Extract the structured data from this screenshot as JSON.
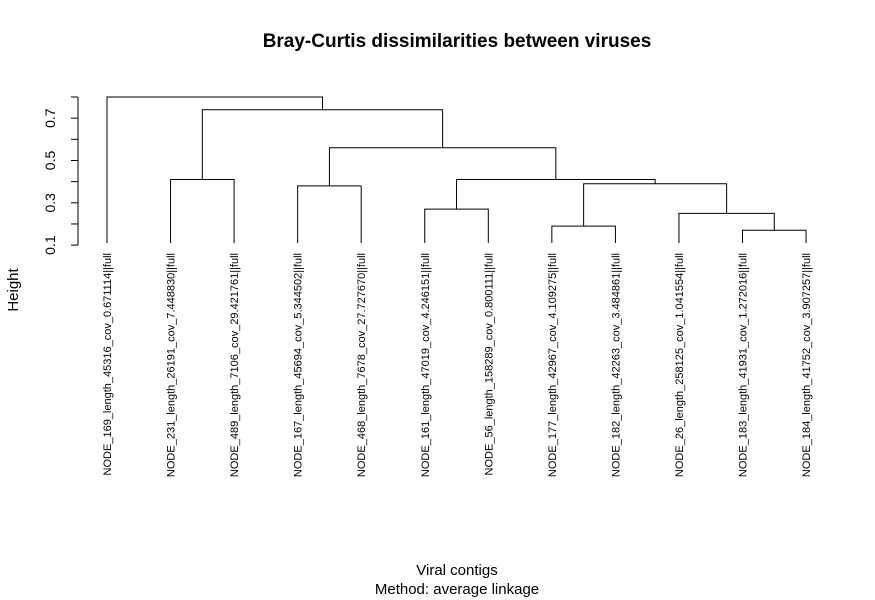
{
  "chart_data": {
    "type": "dendrogram",
    "title": "Bray-Curtis dissimilarities between viruses",
    "ylabel": "Height",
    "xlabel": "Viral contigs",
    "subtitle": "Method: average linkage",
    "yticks": [
      0.1,
      0.3,
      0.5,
      0.7
    ],
    "ytick_labels": [
      "0.1",
      "0.3",
      "0.5",
      "0.7"
    ],
    "ylim": [
      0.1,
      0.8
    ],
    "leaf_height": 0.11,
    "leaves": [
      "NODE_169_length_45316_cov_0.671114||full",
      "NODE_231_length_26191_cov_7.448830||full",
      "NODE_489_length_7106_cov_29.421761||full",
      "NODE_167_length_45694_cov_5.344502||full",
      "NODE_468_length_7678_cov_27.727670||full",
      "NODE_161_length_47019_cov_4.246151||full",
      "NODE_56_length_158289_cov_0.800111||full",
      "NODE_177_length_42967_cov_4.109275||full",
      "NODE_182_length_42263_cov_3.484861||full",
      "NODE_26_length_258125_cov_1.041554||full",
      "NODE_183_length_41931_cov_1.272016||full",
      "NODE_184_length_41752_cov_3.907257||full"
    ],
    "merges": [
      {
        "left": "L10",
        "right": "L11",
        "height": 0.17
      },
      {
        "left": "L9",
        "right": "C0",
        "height": 0.25
      },
      {
        "left": "L7",
        "right": "L8",
        "height": 0.19
      },
      {
        "left": "C2",
        "right": "C1",
        "height": 0.39
      },
      {
        "left": "L5",
        "right": "L6",
        "height": 0.27
      },
      {
        "left": "C4",
        "right": "C3",
        "height": 0.41
      },
      {
        "left": "L3",
        "right": "L4",
        "height": 0.38
      },
      {
        "left": "C6",
        "right": "C5",
        "height": 0.56
      },
      {
        "left": "L1",
        "right": "L2",
        "height": 0.41
      },
      {
        "left": "C8",
        "right": "C7",
        "height": 0.74
      },
      {
        "left": "L0",
        "right": "C9",
        "height": 0.8
      }
    ]
  }
}
